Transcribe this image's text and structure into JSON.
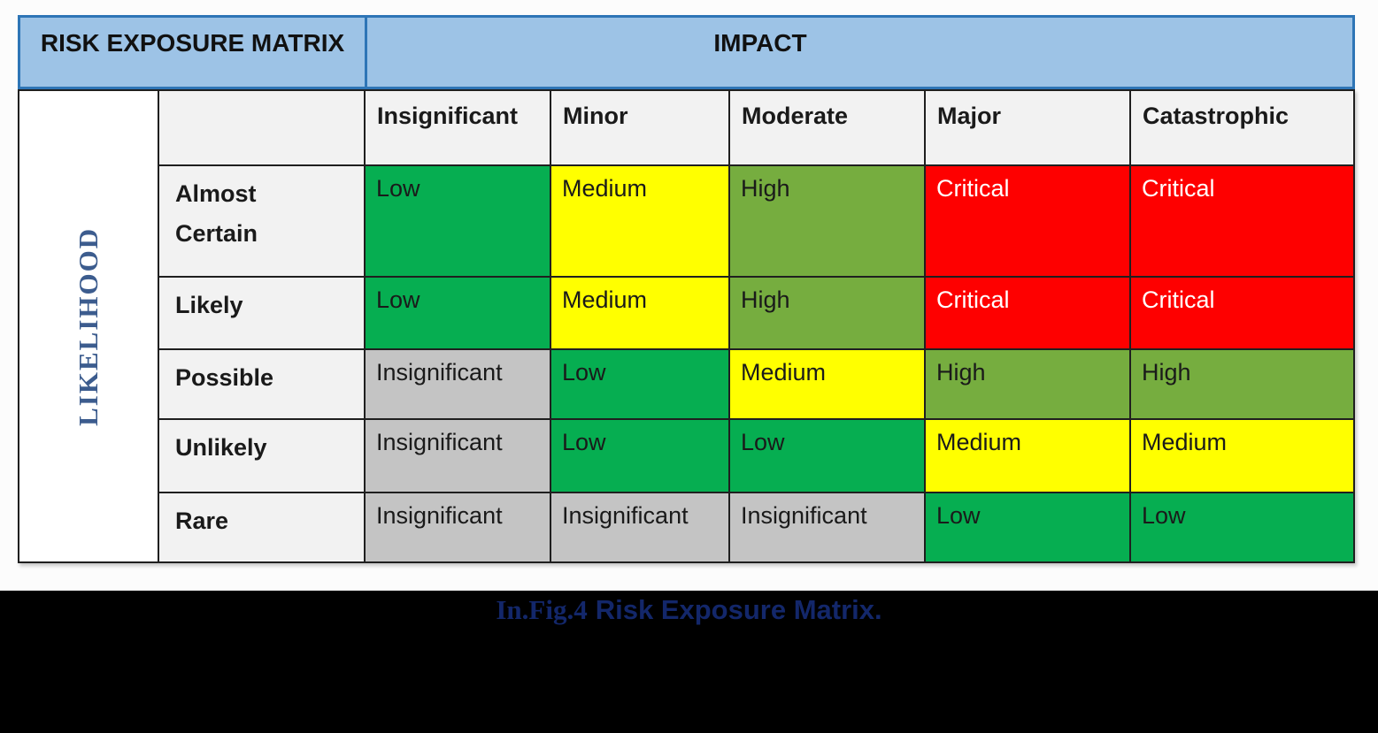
{
  "chart_data": {
    "type": "heatmap",
    "title": "RISK EXPOSURE MATRIX",
    "x_header": "IMPACT",
    "y_header": "LIKELIHOOD",
    "columns": [
      "Insignificant",
      "Minor",
      "Moderate",
      "Major",
      "Catastrophic"
    ],
    "rows": [
      {
        "label": "Almost Certain",
        "cells": [
          {
            "text": "Low",
            "level": "low"
          },
          {
            "text": "Medium",
            "level": "medium"
          },
          {
            "text": "High",
            "level": "high"
          },
          {
            "text": "Critical",
            "level": "critical"
          },
          {
            "text": "Critical",
            "level": "critical"
          }
        ]
      },
      {
        "label": "Likely",
        "cells": [
          {
            "text": "Low",
            "level": "low"
          },
          {
            "text": "Medium",
            "level": "medium"
          },
          {
            "text": "High",
            "level": "high"
          },
          {
            "text": "Critical",
            "level": "critical"
          },
          {
            "text": "Critical",
            "level": "critical"
          }
        ]
      },
      {
        "label": "Possible",
        "cells": [
          {
            "text": "Insignificant",
            "level": "insignificant"
          },
          {
            "text": "Low",
            "level": "low"
          },
          {
            "text": "Medium",
            "level": "medium"
          },
          {
            "text": "High",
            "level": "high"
          },
          {
            "text": "High",
            "level": "high"
          }
        ]
      },
      {
        "label": "Unlikely",
        "cells": [
          {
            "text": "Insignificant",
            "level": "insignificant"
          },
          {
            "text": "Low",
            "level": "low"
          },
          {
            "text": "Low",
            "level": "low"
          },
          {
            "text": "Medium",
            "level": "medium"
          },
          {
            "text": "Medium",
            "level": "medium"
          }
        ]
      },
      {
        "label": "Rare",
        "cells": [
          {
            "text": "Insignificant",
            "level": "insignificant"
          },
          {
            "text": "Insignificant",
            "level": "insignificant"
          },
          {
            "text": "Insignificant",
            "level": "insignificant"
          },
          {
            "text": "Low",
            "level": "low"
          },
          {
            "text": "Low",
            "level": "low"
          }
        ]
      }
    ],
    "levels": {
      "insignificant": {
        "bg": "#C4C4C4",
        "fg": "#1a1a1a"
      },
      "low": {
        "bg": "#06AE51",
        "fg": "#1a1a1a"
      },
      "medium": {
        "bg": "#FFFF00",
        "fg": "#1a1a1a"
      },
      "high": {
        "bg": "#76AD3F",
        "fg": "#1a1a1a"
      },
      "critical": {
        "bg": "#FE0000",
        "fg": "#FFFFFF"
      }
    },
    "legend_position": "none",
    "grid": true
  },
  "caption": {
    "prefix": "In.Fig.4",
    "title": "Risk Exposure Matrix."
  },
  "colors": {
    "header-bg": "#9DC3E6",
    "header-border": "#2E75B6",
    "grid-line": "#1f1f1f",
    "label-bg": "#F2F2F2",
    "likelihood-fg": "#3C5C8E",
    "caption-fg": "#13276A",
    "band-bg": "#000000",
    "page-bg": "#FCFCFC"
  }
}
